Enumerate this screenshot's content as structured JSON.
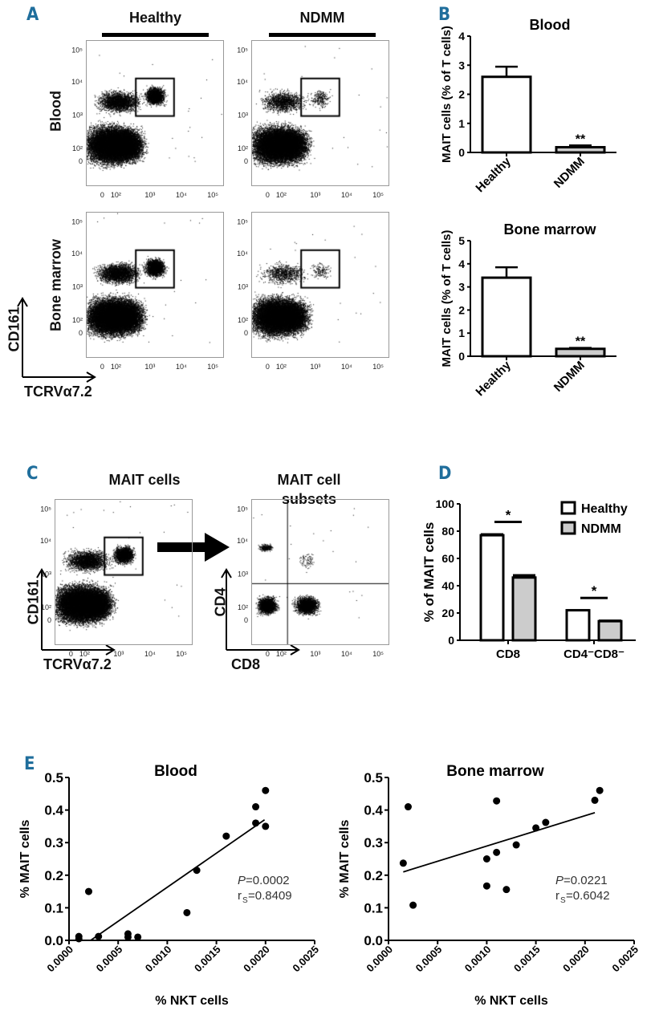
{
  "panel_labels": {
    "a": "A",
    "b": "B",
    "c": "C",
    "d": "D",
    "e": "E"
  },
  "panel_a": {
    "col_headers": [
      "Healthy",
      "NDMM"
    ],
    "row_headers": [
      "Blood",
      "Bone marrow"
    ],
    "y_axis_label": "CD161",
    "x_axis_label": "TCRVα7.2",
    "x_ticks": [
      "0",
      "10²",
      "10³",
      "10⁴",
      "10⁵"
    ],
    "y_ticks": [
      "10⁵",
      "10⁴",
      "10³",
      "10²",
      "0"
    ]
  },
  "panel_c": {
    "titles": [
      "MAIT cells",
      "MAIT cell",
      "subsets"
    ],
    "left_axes": {
      "y": "CD161",
      "x": "TCRVα7.2"
    },
    "right_axes": {
      "y": "CD4",
      "x": "CD8"
    }
  },
  "chart_data": [
    {
      "id": "B-blood",
      "type": "bar",
      "title": "Blood",
      "ylabel": "MAIT cells (% of T cells)",
      "categories": [
        "Healthy",
        "NDMM"
      ],
      "values": [
        2.6,
        0.18
      ],
      "errors": [
        0.35,
        0.06
      ],
      "ylim": [
        0,
        4
      ],
      "yticks": [
        "0",
        "1",
        "2",
        "3",
        "4"
      ],
      "annotations": [
        "",
        "**"
      ],
      "fills": [
        "#ffffff",
        "#cccccc"
      ]
    },
    {
      "id": "B-bm",
      "type": "bar",
      "title": "Bone marrow",
      "ylabel": "MAIT cells (% of T cells)",
      "categories": [
        "Healthy",
        "NDMM"
      ],
      "values": [
        3.4,
        0.32
      ],
      "errors": [
        0.45,
        0.04
      ],
      "ylim": [
        0,
        5
      ],
      "yticks": [
        "0",
        "1",
        "2",
        "3",
        "4",
        "5"
      ],
      "annotations": [
        "",
        "**"
      ],
      "fills": [
        "#ffffff",
        "#cccccc"
      ]
    },
    {
      "id": "D",
      "type": "bar",
      "ylabel": "% of MAIT cells",
      "categories": [
        "CD8",
        "CD4⁻CD8⁻"
      ],
      "series": [
        {
          "name": "Healthy",
          "values": [
            77,
            22
          ],
          "errors": [
            1.5,
            0.8
          ],
          "color": "#ffffff"
        },
        {
          "name": "NDMM",
          "values": [
            46,
            14
          ],
          "errors": [
            2.5,
            1.2
          ],
          "color": "#cccccc"
        }
      ],
      "ylim": [
        0,
        100
      ],
      "yticks": [
        "0",
        "20",
        "40",
        "60",
        "80",
        "100"
      ],
      "significance": [
        "*",
        "*"
      ],
      "legend": "top-right"
    },
    {
      "id": "E-blood",
      "type": "scatter",
      "title": "Blood",
      "xlabel": "% NKT cells",
      "ylabel": "% MAIT cells",
      "xlim": [
        0,
        0.0025
      ],
      "ylim": [
        0,
        0.5
      ],
      "xticks": [
        "0.0000",
        "0.0005",
        "0.0010",
        "0.0015",
        "0.0020",
        "0.0025"
      ],
      "yticks": [
        "0.0",
        "0.1",
        "0.2",
        "0.3",
        "0.4",
        "0.5"
      ],
      "points": [
        [
          0.0001,
          0.012
        ],
        [
          0.0001,
          0.005
        ],
        [
          0.0002,
          0.15
        ],
        [
          0.0003,
          0.012
        ],
        [
          0.0006,
          0.02
        ],
        [
          0.0006,
          0.01
        ],
        [
          0.0007,
          0.01
        ],
        [
          0.0012,
          0.085
        ],
        [
          0.0013,
          0.215
        ],
        [
          0.0016,
          0.32
        ],
        [
          0.0019,
          0.41
        ],
        [
          0.0019,
          0.36
        ],
        [
          0.002,
          0.46
        ],
        [
          0.002,
          0.35
        ]
      ],
      "fit": [
        [
          0.00022,
          0.0
        ],
        [
          0.00199,
          0.37
        ]
      ],
      "stats": {
        "p": "=0.0002",
        "r": "=0.8409"
      }
    },
    {
      "id": "E-bm",
      "type": "scatter",
      "title": "Bone marrow",
      "xlabel": "% NKT cells",
      "ylabel": "% MAIT cells",
      "xlim": [
        0,
        0.0025
      ],
      "ylim": [
        0,
        0.5
      ],
      "xticks": [
        "0.0000",
        "0.0005",
        "0.0010",
        "0.0015",
        "0.0020",
        "0.0025"
      ],
      "yticks": [
        "0.0",
        "0.1",
        "0.2",
        "0.3",
        "0.4",
        "0.5"
      ],
      "points": [
        [
          0.00015,
          0.237
        ],
        [
          0.0002,
          0.41
        ],
        [
          0.00025,
          0.108
        ],
        [
          0.001,
          0.25
        ],
        [
          0.001,
          0.167
        ],
        [
          0.0011,
          0.428
        ],
        [
          0.0011,
          0.27
        ],
        [
          0.0012,
          0.156
        ],
        [
          0.0013,
          0.293
        ],
        [
          0.0015,
          0.345
        ],
        [
          0.0016,
          0.362
        ],
        [
          0.0021,
          0.43
        ],
        [
          0.00215,
          0.46
        ]
      ],
      "fit": [
        [
          0.00015,
          0.21
        ],
        [
          0.0021,
          0.392
        ]
      ],
      "stats": {
        "p": "=0.0221",
        "r": "=0.6042"
      }
    }
  ],
  "stat_labels": {
    "p": "P",
    "r": "r",
    "r_sub": "S"
  }
}
